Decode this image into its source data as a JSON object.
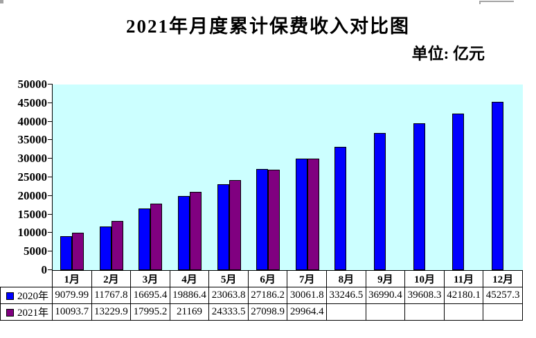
{
  "title": "2021年月度累计保费收入对比图",
  "unit_label": "单位: 亿元",
  "colors": {
    "plot_background": "#ccffff",
    "axis": "#000000",
    "text": "#000000",
    "series_2020": "#0000ff",
    "series_2021": "#800080",
    "table_border": "#000000",
    "artifact_gray": "#a3a3a3"
  },
  "chart_data": {
    "type": "bar",
    "title": "2021年月度累计保费收入对比图",
    "subtitle_unit": "单位: 亿元",
    "categories": [
      "1月",
      "2月",
      "3月",
      "4月",
      "5月",
      "6月",
      "7月",
      "8月",
      "9月",
      "10月",
      "11月",
      "12月"
    ],
    "series": [
      {
        "name": "2020年",
        "color": "#0000ff",
        "values": [
          9079.99,
          11767.8,
          16695.4,
          19886.4,
          23063.8,
          27186.2,
          30061.8,
          33246.5,
          36990.4,
          39608.3,
          42180.1,
          45257.3
        ]
      },
      {
        "name": "2021年",
        "color": "#800080",
        "values": [
          10093.7,
          13229.9,
          17995.2,
          21169,
          24333.5,
          27098.9,
          29964.4,
          null,
          null,
          null,
          null,
          null
        ]
      }
    ],
    "xlabel": "",
    "ylabel": "",
    "ylim": [
      0,
      50000
    ],
    "ytick_step": 5000,
    "yticks": [
      0,
      5000,
      10000,
      15000,
      20000,
      25000,
      30000,
      35000,
      40000,
      45000,
      50000
    ],
    "grid": false,
    "legend_position": "data-table-left",
    "data_table_shown": true
  }
}
